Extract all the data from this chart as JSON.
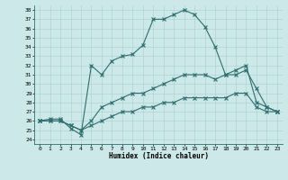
{
  "xlabel": "Humidex (Indice chaleur)",
  "background_color": "#cce8e8",
  "line_color": "#2e6e6e",
  "grid_color": "#aacccc",
  "xlim": [
    -0.5,
    23.5
  ],
  "ylim": [
    23.5,
    38.5
  ],
  "xticks": [
    0,
    1,
    2,
    3,
    4,
    5,
    6,
    7,
    8,
    9,
    10,
    11,
    12,
    13,
    14,
    15,
    16,
    17,
    18,
    19,
    20,
    21,
    22,
    23
  ],
  "yticks": [
    24,
    25,
    26,
    27,
    28,
    29,
    30,
    31,
    32,
    33,
    34,
    35,
    36,
    37,
    38
  ],
  "line1_x": [
    0,
    1,
    2,
    3,
    4,
    5,
    6,
    7,
    8,
    9,
    10,
    11,
    12,
    13,
    14,
    15,
    16,
    17,
    18,
    19,
    20,
    21,
    22,
    23
  ],
  "line1_y": [
    26,
    26.2,
    26.2,
    25.2,
    24.5,
    32.0,
    31.0,
    32.5,
    33.0,
    33.2,
    34.2,
    37.0,
    37.0,
    37.5,
    38.0,
    37.5,
    36.2,
    34.0,
    31.0,
    31.5,
    32.0,
    28.0,
    27.5,
    27.0
  ],
  "line2_x": [
    0,
    1,
    2,
    3,
    4,
    5,
    6,
    7,
    8,
    9,
    10,
    11,
    12,
    13,
    14,
    15,
    16,
    17,
    18,
    19,
    20,
    21,
    22,
    23
  ],
  "line2_y": [
    26,
    26.0,
    26.0,
    25.5,
    25.0,
    26.0,
    27.5,
    28.0,
    28.5,
    29.0,
    29.0,
    29.5,
    30.0,
    30.5,
    31.0,
    31.0,
    31.0,
    30.5,
    31.0,
    31.0,
    31.5,
    29.5,
    27.5,
    27.0
  ],
  "line3_x": [
    0,
    1,
    2,
    3,
    4,
    5,
    6,
    7,
    8,
    9,
    10,
    11,
    12,
    13,
    14,
    15,
    16,
    17,
    18,
    19,
    20,
    21,
    22,
    23
  ],
  "line3_y": [
    26,
    26.0,
    26.0,
    25.5,
    25.0,
    25.5,
    26.0,
    26.5,
    27.0,
    27.0,
    27.5,
    27.5,
    28.0,
    28.0,
    28.5,
    28.5,
    28.5,
    28.5,
    28.5,
    29.0,
    29.0,
    27.5,
    27.0,
    27.0
  ]
}
